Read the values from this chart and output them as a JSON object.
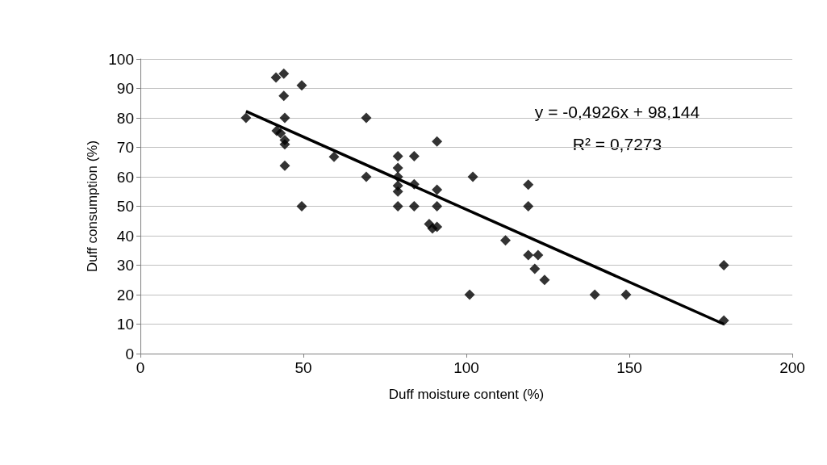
{
  "chart_data": {
    "type": "scatter",
    "xlabel": "Duff moisture content (%)",
    "ylabel": "Duff consumption (%)",
    "xlim": [
      0,
      200
    ],
    "xticks": [
      0,
      50,
      100,
      150,
      200
    ],
    "ylim": [
      0,
      100
    ],
    "yticks": [
      0,
      10,
      20,
      30,
      40,
      50,
      60,
      70,
      80,
      90,
      100
    ],
    "grid": "y",
    "marker": "diamond",
    "series": [
      {
        "color": "#000000",
        "x": [
          32.4,
          41.6,
          44,
          44,
          44.3,
          41.8,
          43,
          44.3,
          44.3,
          44.3,
          49.5,
          49.5,
          59.4,
          69.3,
          69.3,
          79,
          79,
          79,
          79,
          79,
          79,
          84,
          84,
          84,
          91,
          91,
          91,
          88.6,
          89.6,
          91,
          102,
          101,
          112,
          119,
          119,
          119,
          122,
          121,
          124,
          139.4,
          149,
          179,
          179
        ],
        "values": [
          80,
          93.7,
          95,
          87.5,
          80,
          75.6,
          74.8,
          72.5,
          71,
          63.8,
          91,
          50,
          66.8,
          80,
          60,
          67,
          63,
          60,
          57,
          55,
          50,
          67,
          57.5,
          50,
          72,
          55.6,
          50,
          44,
          42.5,
          43,
          60,
          20,
          38.4,
          57.3,
          50,
          33.4,
          33.4,
          28.8,
          25,
          20,
          20,
          30,
          11.2
        ]
      },
      {
        "type": "line",
        "color": "#000000",
        "marker": "none",
        "x": [
          32.4,
          179
        ],
        "values": [
          82.2,
          10
        ]
      }
    ],
    "annotations": [
      "y = -0,4926x + 98,144",
      "R² = 0,7273"
    ]
  }
}
